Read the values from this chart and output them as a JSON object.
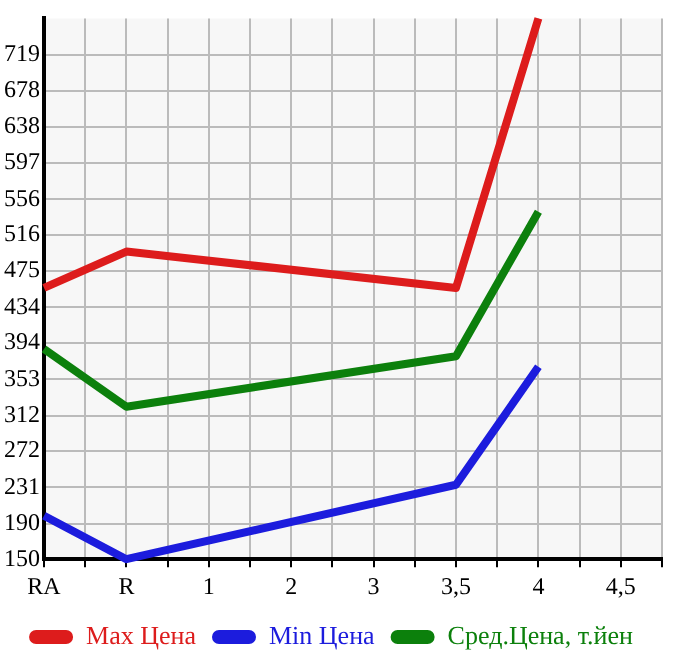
{
  "chart_data": {
    "type": "line",
    "categories": [
      "RA",
      "R",
      "1",
      "2",
      "3",
      "3,5",
      "4",
      "4,5"
    ],
    "series": [
      {
        "name": "Max Цена",
        "color": "#dd1c1c",
        "values": [
          456,
          497,
          null,
          null,
          null,
          456,
          760,
          null
        ]
      },
      {
        "name": "Min Цена",
        "color": "#1c1cdd",
        "values": [
          199,
          150,
          null,
          null,
          null,
          234,
          367,
          null
        ]
      },
      {
        "name": "Сред.Цена, т.йен",
        "color": "#0c800c",
        "values": [
          387,
          322,
          null,
          null,
          null,
          379,
          542,
          null
        ]
      }
    ],
    "ylim": [
      150,
      760
    ],
    "yticks": [
      150,
      190,
      231,
      272,
      312,
      353,
      394,
      434,
      475,
      516,
      556,
      597,
      638,
      678,
      719
    ],
    "grid": true,
    "legend": "bottom",
    "marker": "none",
    "line_style": "solid"
  }
}
